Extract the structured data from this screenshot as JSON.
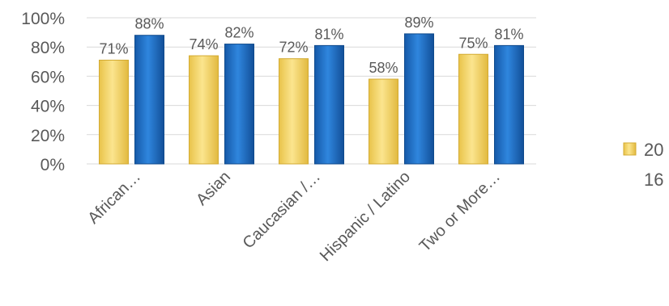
{
  "chart_data": {
    "type": "bar",
    "categories": [
      "African…",
      "Asian",
      "Caucasian /…",
      "Hispanic / Latino",
      "Two or More…"
    ],
    "series": [
      {
        "values": [
          71,
          74,
          72,
          58,
          75
        ],
        "color": "#f7d767",
        "labels": [
          "71%",
          "74%",
          "72%",
          "58%",
          "75%"
        ]
      },
      {
        "values": [
          88,
          82,
          81,
          89,
          81
        ],
        "color": "#1f6fc5",
        "labels": [
          "88%",
          "82%",
          "81%",
          "89%",
          "81%"
        ]
      }
    ],
    "ylim": [
      0,
      100
    ],
    "yticks": [
      0,
      20,
      40,
      60,
      80,
      100
    ],
    "ytick_labels": [
      "0%",
      "20%",
      "40%",
      "60%",
      "80%",
      "100%"
    ],
    "grid": true,
    "legend": {
      "position": "right",
      "entries": [
        {
          "label": "2016",
          "color": "#f7d767"
        }
      ]
    }
  }
}
